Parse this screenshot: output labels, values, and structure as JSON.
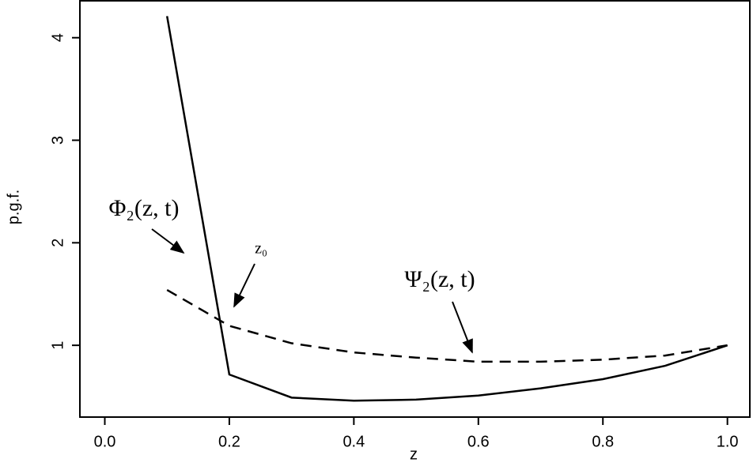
{
  "chart_data": {
    "type": "line",
    "x_label": "z",
    "y_label": "p.g.f.",
    "x": [
      0.1,
      0.2,
      0.3,
      0.4,
      0.5,
      0.6,
      0.7,
      0.8,
      0.9,
      1.0
    ],
    "series": [
      {
        "color": "#000000",
        "dash": "solid",
        "values": [
          4.21,
          0.715,
          0.49,
          0.46,
          0.47,
          0.51,
          0.58,
          0.67,
          0.8,
          1.0
        ]
      },
      {
        "color": "#000000",
        "dash": "dashed",
        "values": [
          1.54,
          1.19,
          1.02,
          0.93,
          0.88,
          0.84,
          0.84,
          0.86,
          0.9,
          1.0
        ]
      }
    ],
    "annotations": [
      "Φ₂(z, t)",
      "z₀",
      "Ψ₂(z, t)"
    ],
    "xlim": [
      -0.04,
      1.036
    ],
    "ylim": [
      0.3,
      4.36
    ],
    "xticks": [
      {
        "value": 0,
        "label": "0.0"
      },
      0.2,
      0.4,
      0.6,
      0.8,
      {
        "value": 1,
        "label": "1.0"
      }
    ],
    "yticks": [
      1,
      2,
      3,
      4
    ]
  }
}
